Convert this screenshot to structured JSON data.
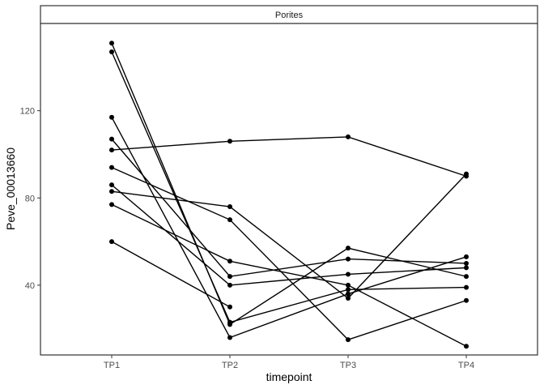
{
  "chart_data": {
    "type": "line",
    "facet_label": "Porites",
    "xlabel": "timepoint",
    "ylabel": "Peve_00013660",
    "categories": [
      "TP1",
      "TP2",
      "TP3",
      "TP4"
    ],
    "ylim": [
      8,
      160
    ],
    "yticks": [
      40,
      80,
      120
    ],
    "grid": false,
    "legend": "none",
    "line_color": "#000000",
    "series": [
      {
        "values": [
          151,
          22,
          57,
          44
        ]
      },
      {
        "values": [
          147,
          23,
          38,
          39
        ]
      },
      {
        "values": [
          117,
          16,
          36,
          53
        ]
      },
      {
        "values": [
          107,
          44,
          52,
          50
        ]
      },
      {
        "values": [
          102,
          106,
          108,
          90
        ]
      },
      {
        "values": [
          94,
          70,
          15,
          33
        ]
      },
      {
        "values": [
          86,
          40,
          45,
          48
        ]
      },
      {
        "values": [
          83,
          76,
          34,
          91
        ]
      },
      {
        "values": [
          77,
          51,
          40,
          12
        ]
      },
      {
        "values": [
          60,
          30,
          null,
          null
        ]
      }
    ]
  }
}
